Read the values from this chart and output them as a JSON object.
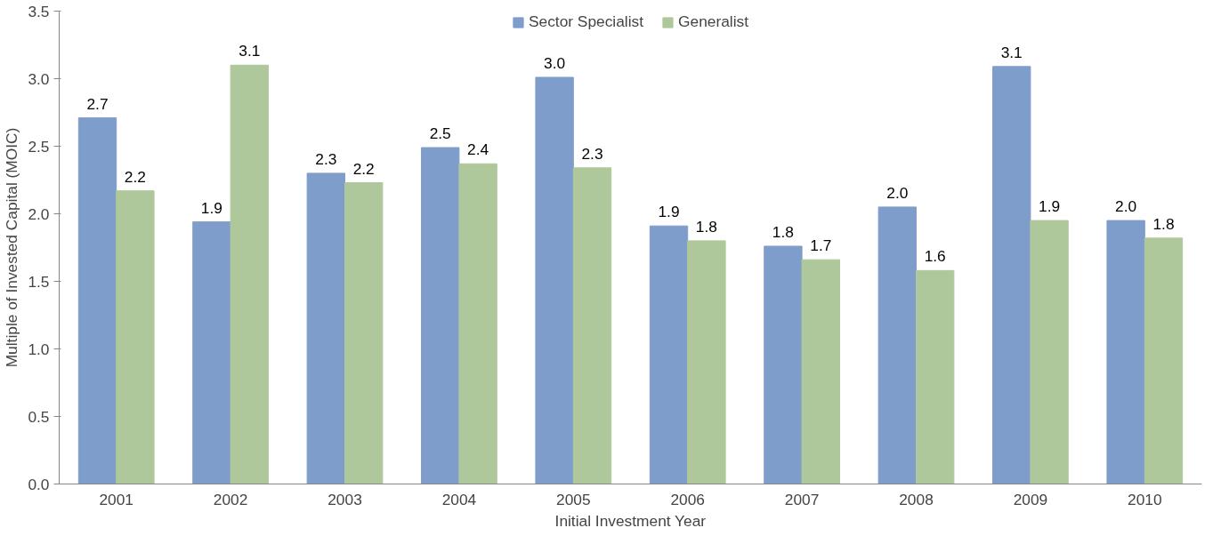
{
  "chart_data": {
    "type": "bar",
    "xlabel": "Initial Investment Year",
    "ylabel": "Multiple of Invested Capital (MOIC)",
    "categories": [
      "2001",
      "2002",
      "2003",
      "2004",
      "2005",
      "2006",
      "2007",
      "2008",
      "2009",
      "2010"
    ],
    "series": [
      {
        "name": "Sector Specialist",
        "color": "#7f9dcb",
        "values": [
          2.71,
          1.94,
          2.3,
          2.49,
          3.01,
          1.91,
          1.76,
          2.05,
          3.09,
          1.95
        ],
        "value_labels": [
          "2.7",
          "1.9",
          "2.3",
          "2.5",
          "3.0",
          "1.9",
          "1.8",
          "2.0",
          "3.1",
          "2.0"
        ]
      },
      {
        "name": "Generalist",
        "color": "#afc89b",
        "values": [
          2.17,
          3.1,
          2.23,
          2.37,
          2.34,
          1.8,
          1.66,
          1.58,
          1.95,
          1.82
        ],
        "value_labels": [
          "2.2",
          "3.1",
          "2.2",
          "2.4",
          "2.3",
          "1.8",
          "1.7",
          "1.6",
          "1.9",
          "1.8"
        ]
      }
    ],
    "ylim": [
      0,
      3.5
    ],
    "yticks": [
      {
        "value": 0,
        "label": "0.0"
      },
      0.5,
      {
        "value": 1,
        "label": "1.0"
      },
      1.5,
      {
        "value": 2,
        "label": "2.0"
      },
      2.5,
      {
        "value": 3,
        "label": "3.0"
      },
      3.5
    ],
    "grid": false,
    "legend": "top"
  }
}
